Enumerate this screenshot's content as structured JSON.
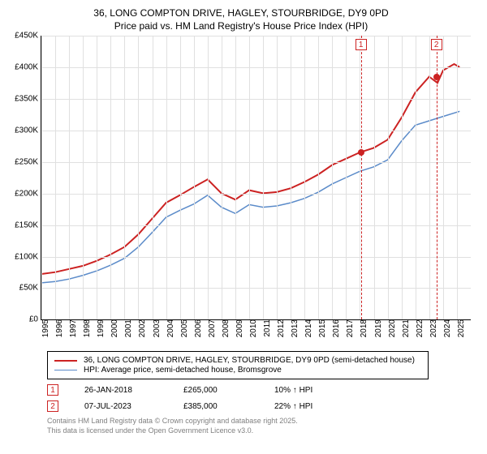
{
  "chart": {
    "title_line1": "36, LONG COMPTON DRIVE, HAGLEY, STOURBRIDGE, DY9 0PD",
    "title_line2": "Price paid vs. HM Land Registry's House Price Index (HPI)",
    "ylabel_prefix": "£",
    "ylim": [
      0,
      450000
    ],
    "ytick_step": 50000,
    "yticks": [
      "£0",
      "£50K",
      "£100K",
      "£150K",
      "£200K",
      "£250K",
      "£300K",
      "£350K",
      "£400K",
      "£450K"
    ],
    "xlim": [
      1995,
      2026
    ],
    "xticks": [
      1995,
      1996,
      1997,
      1998,
      1999,
      2000,
      2001,
      2002,
      2003,
      2004,
      2005,
      2006,
      2007,
      2008,
      2009,
      2010,
      2011,
      2012,
      2013,
      2014,
      2015,
      2016,
      2017,
      2018,
      2019,
      2020,
      2021,
      2022,
      2023,
      2024,
      2025
    ],
    "grid_color": "#e0e0e0",
    "background_color": "#ffffff",
    "series": {
      "price": {
        "label": "36, LONG COMPTON DRIVE, HAGLEY, STOURBRIDGE, DY9 0PD (semi-detached house)",
        "color": "#cc2222",
        "line_width": 2,
        "points": [
          [
            1995,
            72000
          ],
          [
            1996,
            75000
          ],
          [
            1997,
            80000
          ],
          [
            1998,
            85000
          ],
          [
            1999,
            93000
          ],
          [
            2000,
            103000
          ],
          [
            2001,
            115000
          ],
          [
            2002,
            135000
          ],
          [
            2003,
            160000
          ],
          [
            2004,
            185000
          ],
          [
            2005,
            197000
          ],
          [
            2006,
            210000
          ],
          [
            2007,
            222000
          ],
          [
            2008,
            200000
          ],
          [
            2009,
            190000
          ],
          [
            2010,
            205000
          ],
          [
            2011,
            200000
          ],
          [
            2012,
            202000
          ],
          [
            2013,
            208000
          ],
          [
            2014,
            218000
          ],
          [
            2015,
            230000
          ],
          [
            2016,
            245000
          ],
          [
            2017,
            255000
          ],
          [
            2018,
            265000
          ],
          [
            2019,
            272000
          ],
          [
            2020,
            285000
          ],
          [
            2021,
            320000
          ],
          [
            2022,
            360000
          ],
          [
            2023,
            385000
          ],
          [
            2023.6,
            375000
          ],
          [
            2024,
            395000
          ],
          [
            2024.8,
            405000
          ],
          [
            2025.2,
            400000
          ]
        ]
      },
      "hpi": {
        "label": "HPI: Average price, semi-detached house, Bromsgrove",
        "color": "#5b8bc9",
        "line_width": 1.5,
        "points": [
          [
            1995,
            58000
          ],
          [
            1996,
            60000
          ],
          [
            1997,
            64000
          ],
          [
            1998,
            70000
          ],
          [
            1999,
            77000
          ],
          [
            2000,
            86000
          ],
          [
            2001,
            97000
          ],
          [
            2002,
            115000
          ],
          [
            2003,
            138000
          ],
          [
            2004,
            162000
          ],
          [
            2005,
            173000
          ],
          [
            2006,
            183000
          ],
          [
            2007,
            197000
          ],
          [
            2008,
            178000
          ],
          [
            2009,
            168000
          ],
          [
            2010,
            182000
          ],
          [
            2011,
            178000
          ],
          [
            2012,
            180000
          ],
          [
            2013,
            185000
          ],
          [
            2014,
            192000
          ],
          [
            2015,
            202000
          ],
          [
            2016,
            215000
          ],
          [
            2017,
            225000
          ],
          [
            2018,
            235000
          ],
          [
            2019,
            242000
          ],
          [
            2020,
            253000
          ],
          [
            2021,
            283000
          ],
          [
            2022,
            308000
          ],
          [
            2023,
            315000
          ],
          [
            2024,
            322000
          ],
          [
            2025.2,
            330000
          ]
        ]
      }
    },
    "markers": [
      {
        "id": "1",
        "x": 2018.07,
        "y": 265000,
        "date": "26-JAN-2018",
        "price": "£265,000",
        "vs_hpi": "10% ↑ HPI"
      },
      {
        "id": "2",
        "x": 2023.52,
        "y": 385000,
        "date": "07-JUL-2023",
        "price": "£385,000",
        "vs_hpi": "22% ↑ HPI"
      }
    ]
  },
  "footer": {
    "line1": "Contains HM Land Registry data © Crown copyright and database right 2025.",
    "line2": "This data is licensed under the Open Government Licence v3.0."
  }
}
